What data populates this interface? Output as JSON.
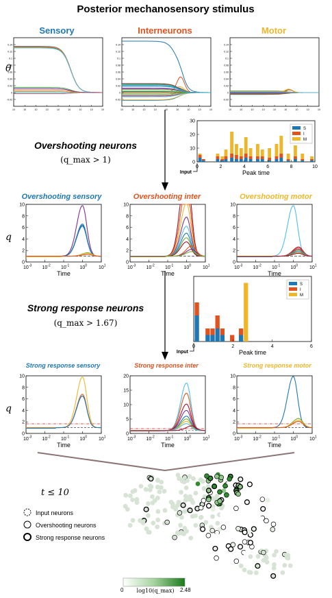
{
  "title": "Posterior mechanosensory stimulus",
  "colors": {
    "sensory": "#1f77b4",
    "inter": "#e0531f",
    "motor": "#eeb72b",
    "s": "#1f77b4",
    "i": "#e0531f",
    "m": "#eeb72b"
  },
  "row1": {
    "ylabel": "θ",
    "panels": [
      {
        "title": "Sensory"
      },
      {
        "title": "Interneurons"
      },
      {
        "title": "Motor"
      }
    ]
  },
  "overshoot_heading": "Overshooting neurons",
  "overshoot_condition": "(q_max > 1)",
  "strong_heading": "Strong response neurons",
  "strong_condition": "(q_max > 1.67)",
  "input_label": "Input",
  "row2": {
    "ylabel": "q",
    "xlabel": "Time",
    "panels": [
      {
        "title": "Overshooting sensory"
      },
      {
        "title": "Overshooting inter"
      },
      {
        "title": "Overshooting motor"
      }
    ]
  },
  "row3": {
    "ylabel": "q",
    "xlabel": "Time",
    "panels": [
      {
        "title": "Strong response sensory"
      },
      {
        "title": "Strong response inter"
      },
      {
        "title": "Strong response motor"
      }
    ]
  },
  "network": {
    "condition": "t ≤ 10",
    "legend": [
      "Input neurons",
      "Overshooting neurons",
      "Strong response neurons"
    ],
    "colorbar_label": "log10(q_max)",
    "colorbar_min": "0",
    "colorbar_max": "2.48"
  },
  "chart_data": [
    {
      "type": "bar",
      "id": "hist1",
      "xlabel": "Peak time",
      "xlim": [
        0,
        10
      ],
      "ylim": [
        0,
        30
      ],
      "xticks": [
        0,
        2,
        4,
        6,
        8,
        10
      ],
      "yticks": [
        0,
        10,
        20,
        30
      ],
      "stacked": true,
      "legend": [
        "S",
        "I",
        "M"
      ],
      "legend_position": "top-right",
      "bins": [
        {
          "x": 0.1,
          "S": 3,
          "I": 2,
          "M": 1
        },
        {
          "x": 0.4,
          "S": 1,
          "I": 1,
          "M": 0
        },
        {
          "x": 1.6,
          "S": 2,
          "I": 2,
          "M": 2
        },
        {
          "x": 2.0,
          "S": 1,
          "I": 1,
          "M": 2
        },
        {
          "x": 2.3,
          "S": 2,
          "I": 2,
          "M": 5
        },
        {
          "x": 2.8,
          "S": 3,
          "I": 3,
          "M": 16
        },
        {
          "x": 3.2,
          "S": 2,
          "I": 3,
          "M": 8
        },
        {
          "x": 3.6,
          "S": 2,
          "I": 2,
          "M": 6
        },
        {
          "x": 4.0,
          "S": 3,
          "I": 3,
          "M": 12
        },
        {
          "x": 4.4,
          "S": 2,
          "I": 2,
          "M": 6
        },
        {
          "x": 5.0,
          "S": 2,
          "I": 2,
          "M": 9
        },
        {
          "x": 5.4,
          "S": 2,
          "I": 2,
          "M": 5
        },
        {
          "x": 6.0,
          "S": 1,
          "I": 2,
          "M": 7
        },
        {
          "x": 6.6,
          "S": 2,
          "I": 2,
          "M": 9
        },
        {
          "x": 7.0,
          "S": 3,
          "I": 3,
          "M": 13
        },
        {
          "x": 7.6,
          "S": 1,
          "I": 1,
          "M": 4
        },
        {
          "x": 8.2,
          "S": 2,
          "I": 2,
          "M": 8
        },
        {
          "x": 8.8,
          "S": 1,
          "I": 1,
          "M": 4
        },
        {
          "x": 9.6,
          "S": 1,
          "I": 1,
          "M": 2
        }
      ]
    },
    {
      "type": "bar",
      "id": "hist2",
      "xlabel": "Peak time",
      "xlim": [
        0,
        6
      ],
      "ylim": [
        0,
        10
      ],
      "xticks": [
        0,
        2,
        4,
        6
      ],
      "stacked": true,
      "legend": [
        "S",
        "I",
        "M"
      ],
      "legend_position": "top-right",
      "bins": [
        {
          "x": 0.05,
          "S": 4,
          "I": 2,
          "M": 0
        },
        {
          "x": 0.6,
          "S": 1,
          "I": 1,
          "M": 0
        },
        {
          "x": 0.85,
          "S": 1,
          "I": 1,
          "M": 0
        },
        {
          "x": 1.1,
          "S": 2,
          "I": 2,
          "M": 0
        },
        {
          "x": 1.35,
          "S": 1,
          "I": 1,
          "M": 0
        },
        {
          "x": 1.85,
          "S": 0,
          "I": 1,
          "M": 0
        },
        {
          "x": 2.3,
          "S": 1,
          "I": 1,
          "M": 0
        },
        {
          "x": 2.55,
          "S": 0,
          "I": 0,
          "M": 9
        }
      ]
    },
    {
      "type": "line",
      "id": "theta",
      "xscale": "log",
      "xlim": [
        -3,
        1
      ],
      "panels": [
        {
          "name": "Sensory",
          "ylim": [
            -0.04,
            0.16
          ]
        },
        {
          "name": "Interneurons",
          "ylim": [
            -0.04,
            0.16
          ]
        },
        {
          "name": "Motor",
          "ylim": [
            -0.04,
            0.16
          ]
        }
      ]
    },
    {
      "type": "line",
      "id": "q_overshoot",
      "xscale": "log",
      "xlim": [
        -3,
        1
      ],
      "ylim": [
        0,
        10
      ],
      "yticks": [
        0,
        2,
        4,
        6,
        8,
        10
      ],
      "reference_line": 1,
      "panels": [
        {
          "name": "Overshooting sensory",
          "peaks": [
            9.8,
            6.6,
            6.4,
            6.2,
            1.6,
            1.5,
            1.3
          ]
        },
        {
          "name": "Overshooting inter",
          "peaks": [
            17.8,
            13.5,
            10.2,
            7.8,
            6.2,
            5.0,
            4.2,
            3.5,
            2.8,
            2.2,
            1.8
          ]
        },
        {
          "name": "Overshooting motor",
          "peaks": [
            9.8,
            2.6,
            2.4,
            2.2,
            2.0,
            1.8,
            1.6,
            1.5
          ]
        }
      ]
    },
    {
      "type": "line",
      "id": "q_strong",
      "xscale": "log",
      "xlim": [
        -3,
        1
      ],
      "reference_line": 1.67,
      "panels": [
        {
          "name": "Strong response sensory",
          "ylim": [
            0,
            10
          ],
          "peaks": [
            9.8,
            6.8,
            6.5
          ]
        },
        {
          "name": "Strong response inter",
          "ylim": [
            0,
            20
          ],
          "peaks": [
            17.5,
            14.0,
            10.2,
            8.0,
            6.0,
            5.0,
            4.2,
            3.4,
            2.6
          ]
        },
        {
          "name": "Strong response motor",
          "ylim": [
            0,
            10
          ],
          "peaks": [
            9.9,
            2.6,
            2.3,
            2.1
          ]
        }
      ]
    }
  ]
}
